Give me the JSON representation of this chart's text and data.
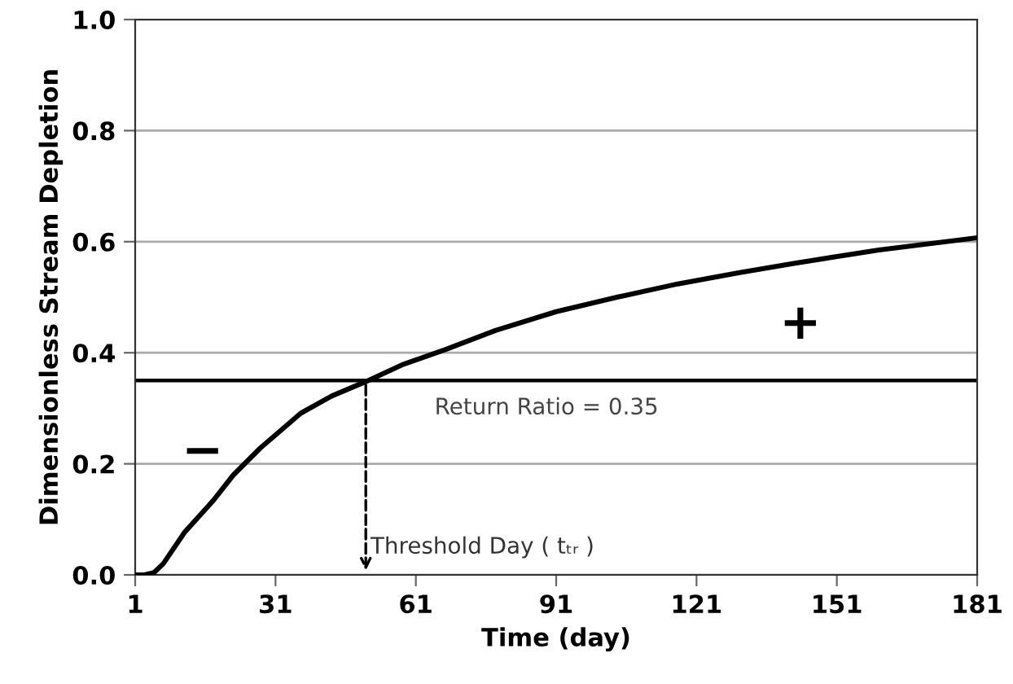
{
  "chart_data": {
    "type": "line",
    "xlabel": "Time (day)",
    "ylabel": "Dimensionless Stream Depletion",
    "x": [
      1,
      3,
      5,
      7,
      11.5,
      17.7,
      22,
      27.7,
      36.4,
      43,
      50.3,
      58,
      67.4,
      78,
      91,
      104,
      117,
      130,
      141.8,
      160,
      181
    ],
    "series": [
      {
        "color": "#000000",
        "values": [
          0.0,
          0.0,
          0.004,
          0.02,
          0.076,
          0.134,
          0.18,
          0.228,
          0.291,
          0.322,
          0.348,
          0.378,
          0.406,
          0.44,
          0.474,
          0.5,
          0.524,
          0.544,
          0.561,
          0.585,
          0.607
        ]
      }
    ],
    "xlim": [
      1,
      181
    ],
    "xticks": [
      1,
      31,
      61,
      91,
      121,
      151,
      181
    ],
    "ylim": [
      0,
      1
    ],
    "yticks": [
      {
        "value": 0,
        "label": "0.0"
      },
      {
        "value": 0.2,
        "label": "0.2"
      },
      {
        "value": 0.4,
        "label": "0.4"
      },
      {
        "value": 0.6,
        "label": "0.6"
      },
      {
        "value": 0.8,
        "label": "0.8"
      },
      {
        "value": 1,
        "label": "1.0"
      }
    ],
    "grid": "y",
    "marker": "none",
    "line_style": "solid",
    "ref_lines": [
      {
        "axis": "y",
        "value": 0.35,
        "label": "Return Ratio = 0.35",
        "color": "#000000"
      }
    ],
    "annotations": [
      {
        "text": "Threshold Day ( tₜᵣ )",
        "x": 50.3,
        "y": 0.35
      },
      "−",
      "+"
    ]
  }
}
